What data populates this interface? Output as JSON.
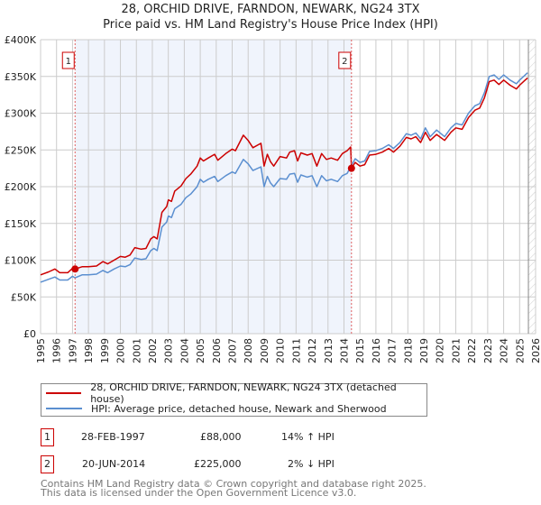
{
  "title_line1": "28, ORCHID DRIVE, FARNDON, NEWARK, NG24 3TX",
  "title_line2": "Price paid vs. HM Land Registry's House Price Index (HPI)",
  "chart_data": {
    "type": "line",
    "title": "28, ORCHID DRIVE, FARNDON, NEWARK, NG24 3TX - Price paid vs. HM Land Registry's House Price Index (HPI)",
    "xlim": [
      1995,
      2026
    ],
    "ylim": [
      0,
      400000
    ],
    "grid": true,
    "x_ticks": [
      "1995",
      "1996",
      "1997",
      "1998",
      "1999",
      "2000",
      "2001",
      "2002",
      "2003",
      "2004",
      "2005",
      "2006",
      "2007",
      "2008",
      "2009",
      "2010",
      "2011",
      "2012",
      "2013",
      "2014",
      "2015",
      "2016",
      "2017",
      "2018",
      "2019",
      "2020",
      "2021",
      "2022",
      "2023",
      "2024",
      "2025",
      "2026"
    ],
    "y_ticks": [
      {
        "v": 0,
        "label": "£0"
      },
      {
        "v": 50000,
        "label": "£50K"
      },
      {
        "v": 100000,
        "label": "£100K"
      },
      {
        "v": 150000,
        "label": "£150K"
      },
      {
        "v": 200000,
        "label": "£200K"
      },
      {
        "v": 250000,
        "label": "£250K"
      },
      {
        "v": 300000,
        "label": "£300K"
      },
      {
        "v": 350000,
        "label": "£350K"
      },
      {
        "v": 400000,
        "label": "£400K"
      }
    ],
    "shaded_range": [
      1997.16,
      2014.47
    ],
    "forecast_from": 2025.55,
    "series": [
      {
        "name": "28, ORCHID DRIVE, FARNDON, NEWARK, NG24 3TX (detached house)",
        "color": "#cc0000",
        "unit": "K",
        "points": [
          [
            1995.0,
            80
          ],
          [
            1995.5,
            84
          ],
          [
            1995.9,
            88
          ],
          [
            1996.2,
            83
          ],
          [
            1996.7,
            83
          ],
          [
            1997.0,
            89
          ],
          [
            1997.16,
            88
          ],
          [
            1997.6,
            91
          ],
          [
            1998.0,
            91
          ],
          [
            1998.5,
            92
          ],
          [
            1998.9,
            98
          ],
          [
            1999.2,
            95
          ],
          [
            1999.6,
            100
          ],
          [
            2000.0,
            105
          ],
          [
            2000.3,
            104
          ],
          [
            2000.6,
            107
          ],
          [
            2000.9,
            117
          ],
          [
            2001.3,
            115
          ],
          [
            2001.6,
            116
          ],
          [
            2001.9,
            129
          ],
          [
            2002.1,
            132
          ],
          [
            2002.3,
            129
          ],
          [
            2002.6,
            165
          ],
          [
            2002.9,
            173
          ],
          [
            2003.0,
            182
          ],
          [
            2003.2,
            180
          ],
          [
            2003.4,
            194
          ],
          [
            2003.8,
            201
          ],
          [
            2004.1,
            211
          ],
          [
            2004.4,
            217
          ],
          [
            2004.8,
            228
          ],
          [
            2005.0,
            239
          ],
          [
            2005.2,
            235
          ],
          [
            2005.5,
            239
          ],
          [
            2005.9,
            244
          ],
          [
            2006.1,
            236
          ],
          [
            2006.6,
            245
          ],
          [
            2007.0,
            251
          ],
          [
            2007.2,
            249
          ],
          [
            2007.7,
            270
          ],
          [
            2008.0,
            263
          ],
          [
            2008.3,
            253
          ],
          [
            2008.8,
            259
          ],
          [
            2009.0,
            228
          ],
          [
            2009.2,
            244
          ],
          [
            2009.4,
            234
          ],
          [
            2009.6,
            228
          ],
          [
            2010.0,
            241
          ],
          [
            2010.4,
            239
          ],
          [
            2010.6,
            247
          ],
          [
            2010.9,
            249
          ],
          [
            2011.1,
            235
          ],
          [
            2011.3,
            246
          ],
          [
            2011.7,
            243
          ],
          [
            2012.0,
            245
          ],
          [
            2012.3,
            228
          ],
          [
            2012.6,
            245
          ],
          [
            2012.9,
            237
          ],
          [
            2013.2,
            239
          ],
          [
            2013.6,
            236
          ],
          [
            2013.9,
            245
          ],
          [
            2014.2,
            249
          ],
          [
            2014.42,
            254
          ],
          [
            2014.47,
            225
          ],
          [
            2014.7,
            233
          ],
          [
            2015.0,
            228
          ],
          [
            2015.3,
            230
          ],
          [
            2015.6,
            243
          ],
          [
            2016.0,
            244
          ],
          [
            2016.4,
            247
          ],
          [
            2016.8,
            252
          ],
          [
            2017.1,
            247
          ],
          [
            2017.5,
            255
          ],
          [
            2017.9,
            267
          ],
          [
            2018.2,
            265
          ],
          [
            2018.5,
            268
          ],
          [
            2018.8,
            260
          ],
          [
            2019.1,
            274
          ],
          [
            2019.4,
            263
          ],
          [
            2019.8,
            271
          ],
          [
            2020.3,
            263
          ],
          [
            2020.7,
            274
          ],
          [
            2021.0,
            280
          ],
          [
            2021.4,
            278
          ],
          [
            2021.8,
            294
          ],
          [
            2022.2,
            304
          ],
          [
            2022.5,
            307
          ],
          [
            2022.8,
            321
          ],
          [
            2023.1,
            343
          ],
          [
            2023.4,
            345
          ],
          [
            2023.7,
            339
          ],
          [
            2024.0,
            345
          ],
          [
            2024.4,
            338
          ],
          [
            2024.8,
            333
          ],
          [
            2025.0,
            338
          ],
          [
            2025.3,
            344
          ],
          [
            2025.5,
            348
          ]
        ]
      },
      {
        "name": "HPI: Average price, detached house, Newark and Sherwood",
        "color": "#5b8fd0",
        "unit": "K",
        "points": [
          [
            1995.0,
            70
          ],
          [
            1995.5,
            74
          ],
          [
            1995.9,
            77
          ],
          [
            1996.2,
            73
          ],
          [
            1996.7,
            73
          ],
          [
            1997.0,
            78
          ],
          [
            1997.16,
            76
          ],
          [
            1997.6,
            80
          ],
          [
            1998.0,
            80
          ],
          [
            1998.5,
            81
          ],
          [
            1998.9,
            86
          ],
          [
            1999.2,
            83
          ],
          [
            1999.6,
            88
          ],
          [
            2000.0,
            92
          ],
          [
            2000.3,
            91
          ],
          [
            2000.6,
            94
          ],
          [
            2000.9,
            103
          ],
          [
            2001.3,
            101
          ],
          [
            2001.6,
            102
          ],
          [
            2001.9,
            113
          ],
          [
            2002.1,
            116
          ],
          [
            2002.3,
            113
          ],
          [
            2002.6,
            145
          ],
          [
            2002.9,
            152
          ],
          [
            2003.0,
            160
          ],
          [
            2003.2,
            158
          ],
          [
            2003.4,
            170
          ],
          [
            2003.8,
            176
          ],
          [
            2004.1,
            185
          ],
          [
            2004.4,
            190
          ],
          [
            2004.8,
            200
          ],
          [
            2005.0,
            210
          ],
          [
            2005.2,
            206
          ],
          [
            2005.5,
            210
          ],
          [
            2005.9,
            214
          ],
          [
            2006.1,
            207
          ],
          [
            2006.6,
            215
          ],
          [
            2007.0,
            220
          ],
          [
            2007.2,
            218
          ],
          [
            2007.7,
            237
          ],
          [
            2008.0,
            231
          ],
          [
            2008.3,
            222
          ],
          [
            2008.8,
            227
          ],
          [
            2009.0,
            200
          ],
          [
            2009.2,
            214
          ],
          [
            2009.4,
            205
          ],
          [
            2009.6,
            200
          ],
          [
            2010.0,
            211
          ],
          [
            2010.4,
            210
          ],
          [
            2010.6,
            217
          ],
          [
            2010.9,
            218
          ],
          [
            2011.1,
            206
          ],
          [
            2011.3,
            216
          ],
          [
            2011.7,
            213
          ],
          [
            2012.0,
            215
          ],
          [
            2012.3,
            200
          ],
          [
            2012.6,
            215
          ],
          [
            2012.9,
            208
          ],
          [
            2013.2,
            210
          ],
          [
            2013.6,
            207
          ],
          [
            2013.9,
            215
          ],
          [
            2014.2,
            218
          ],
          [
            2014.47,
            229
          ],
          [
            2014.7,
            238
          ],
          [
            2015.0,
            233
          ],
          [
            2015.3,
            235
          ],
          [
            2015.6,
            248
          ],
          [
            2016.0,
            249
          ],
          [
            2016.4,
            252
          ],
          [
            2016.8,
            257
          ],
          [
            2017.1,
            252
          ],
          [
            2017.5,
            260
          ],
          [
            2017.9,
            272
          ],
          [
            2018.2,
            270
          ],
          [
            2018.5,
            273
          ],
          [
            2018.8,
            265
          ],
          [
            2019.1,
            280
          ],
          [
            2019.4,
            268
          ],
          [
            2019.8,
            277
          ],
          [
            2020.3,
            268
          ],
          [
            2020.7,
            280
          ],
          [
            2021.0,
            286
          ],
          [
            2021.4,
            284
          ],
          [
            2021.8,
            300
          ],
          [
            2022.2,
            310
          ],
          [
            2022.5,
            313
          ],
          [
            2022.8,
            328
          ],
          [
            2023.1,
            350
          ],
          [
            2023.4,
            352
          ],
          [
            2023.7,
            346
          ],
          [
            2024.0,
            352
          ],
          [
            2024.4,
            345
          ],
          [
            2024.8,
            340
          ],
          [
            2025.0,
            345
          ],
          [
            2025.3,
            351
          ],
          [
            2025.5,
            355
          ]
        ]
      }
    ],
    "annotations": [
      {
        "label": "1",
        "x": 1997.16,
        "y": 88000
      },
      {
        "label": "2",
        "x": 2014.47,
        "y": 225000
      }
    ]
  },
  "legend": {
    "property": "28, ORCHID DRIVE, FARNDON, NEWARK, NG24 3TX (detached house)",
    "hpi": "HPI: Average price, detached house, Newark and Sherwood"
  },
  "transactions": [
    {
      "num": "1",
      "date": "28-FEB-1997",
      "price": "£88,000",
      "diff": "14% ↑ HPI"
    },
    {
      "num": "2",
      "date": "20-JUN-2014",
      "price": "£225,000",
      "diff": "2% ↓ HPI"
    }
  ],
  "footer": {
    "line1": "Contains HM Land Registry data © Crown copyright and database right 2025.",
    "line2": "This data is licensed under the Open Government Licence v3.0."
  }
}
